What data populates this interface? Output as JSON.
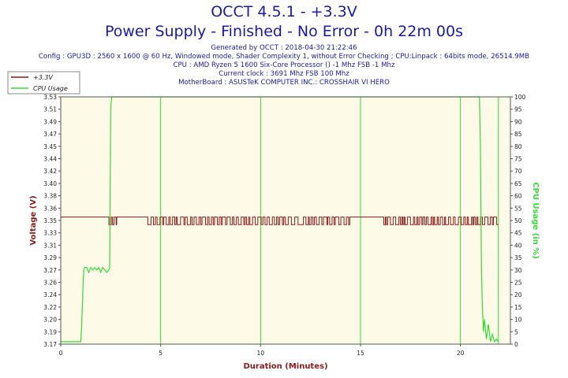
{
  "header": {
    "title": "OCCT 4.5.1 - +3.3V",
    "subtitle": "Power Supply - Finished - No Error - 0h 22m 00s",
    "info": [
      "Generated by OCCT : 2018-04-30 21:22:46",
      "Config : GPU3D : 2560 x 1600 @ 60 Hz, Windowed mode, Shader Complexity 1, without Error Checking ; CPU:Linpack : 64bits mode, 26514.9MB",
      "CPU : AMD Ryzen 5 1600 Six-Core Processor () -1 Mhz FSB -1 Mhz",
      "Current clock : 3691 Mhz FSB 100 Mhz",
      "MotherBoard : ASUSTeK COMPUTER INC.: CROSSHAIR VI HERO"
    ]
  },
  "colors": {
    "plot_bg": "#fdfbe8",
    "voltage": "#8b1a1a",
    "cpu": "#33dd33",
    "grid": "#33dd33",
    "title": "#1a1aa8",
    "axis_title_left": "#8b1a1a",
    "axis_title_bottom": "#8b1a1a",
    "axis_title_right": "#33dd33"
  },
  "chart_data": {
    "type": "line",
    "title": "OCCT 4.5.1 - +3.3V",
    "xlabel": "Duration (Minutes)",
    "ylabel": "Voltage (V)",
    "y2label": "CPU Usage (in %)",
    "xlim": [
      0,
      22.5
    ],
    "ylim": [
      3.17,
      3.53
    ],
    "y2lim": [
      0,
      100
    ],
    "x_ticks": [
      0,
      5,
      10,
      15,
      20
    ],
    "y_ticks": [
      "3.17",
      "3.19",
      "3.20",
      "3.22",
      "3.24",
      "3.26",
      "3.27",
      "3.29",
      "3.31",
      "3.33",
      "3.35",
      "3.36",
      "3.38",
      "3.40",
      "3.42",
      "3.44",
      "3.45",
      "3.47",
      "3.49",
      "3.51",
      "3.53"
    ],
    "y2_ticks": [
      0,
      5,
      10,
      15,
      20,
      25,
      30,
      35,
      40,
      45,
      50,
      55,
      60,
      65,
      70,
      75,
      80,
      85,
      90,
      95,
      100
    ],
    "grid": true,
    "legend_position": "top-left",
    "series": [
      {
        "name": "+3.3V",
        "axis": "left",
        "high": 3.355,
        "low": 3.344,
        "segments": [
          [
            0.0,
            2.3,
            "H"
          ],
          [
            2.3,
            2.8,
            "F"
          ],
          [
            2.8,
            4.3,
            "H"
          ],
          [
            4.3,
            5.2,
            "F"
          ],
          [
            5.2,
            9.5,
            "F"
          ],
          [
            9.5,
            12.0,
            "F"
          ],
          [
            12.0,
            14.5,
            "F"
          ],
          [
            14.5,
            16.0,
            "H"
          ],
          [
            16.0,
            17.0,
            "F"
          ],
          [
            17.0,
            19.0,
            "F"
          ],
          [
            19.0,
            20.9,
            "F"
          ],
          [
            20.9,
            21.9,
            "F"
          ]
        ]
      },
      {
        "name": "CPU Usage",
        "axis": "right",
        "x": [
          0,
          0.9,
          1.0,
          1.05,
          1.1,
          1.15,
          1.2,
          1.3,
          1.4,
          1.5,
          1.6,
          1.7,
          1.8,
          1.9,
          2.0,
          2.1,
          2.2,
          2.3,
          2.4,
          2.45,
          2.5,
          2.55,
          2.6,
          20.95,
          21.0,
          21.05,
          21.1,
          21.15,
          21.2,
          21.3,
          21.4,
          21.5,
          21.6,
          21.7,
          21.8,
          21.9
        ],
        "values": [
          1,
          1,
          1,
          8,
          20,
          30,
          31,
          31,
          29,
          31,
          30,
          31,
          30,
          31,
          29,
          31,
          30,
          29,
          30,
          31,
          95,
          100,
          100,
          100,
          80,
          30,
          15,
          5,
          10,
          2,
          8,
          1,
          4,
          1,
          2,
          1
        ]
      }
    ]
  }
}
